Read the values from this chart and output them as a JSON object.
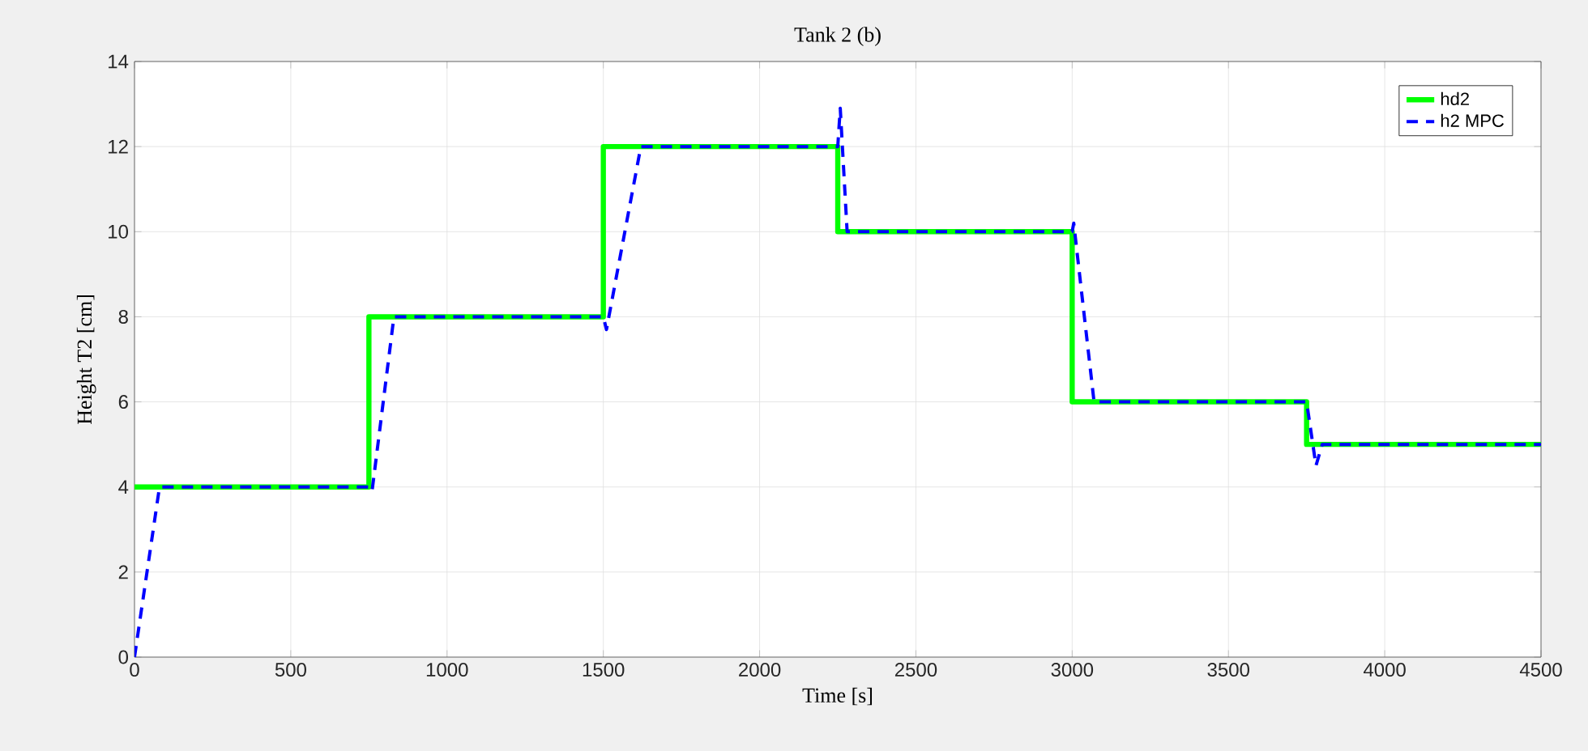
{
  "chart_data": {
    "type": "line",
    "title": "Tank 2 (b)",
    "xlabel": "Time [s]",
    "ylabel": "Height T2 [cm]",
    "xlim": [
      0,
      4500
    ],
    "ylim": [
      0,
      14
    ],
    "xticks": [
      0,
      500,
      1000,
      1500,
      2000,
      2500,
      3000,
      3500,
      4000,
      4500
    ],
    "yticks": [
      0,
      2,
      4,
      6,
      8,
      10,
      12,
      14
    ],
    "grid": true,
    "legend": "top right",
    "series": [
      {
        "name": "hd2",
        "color": "#00ff00",
        "line_style": "solid",
        "x": [
          0,
          750,
          750,
          1500,
          1500,
          2250,
          2250,
          3000,
          3000,
          3750,
          3750,
          4500
        ],
        "values": [
          4,
          4,
          8,
          8,
          12,
          12,
          10,
          10,
          6,
          6,
          5,
          5
        ]
      },
      {
        "name": "h2 MPC",
        "color": "#0000ff",
        "line_style": "dashed",
        "x": [
          0,
          80,
          750,
          760,
          830,
          1500,
          1510,
          1620,
          2250,
          2258,
          2280,
          3000,
          3005,
          3070,
          3750,
          3780,
          3800,
          4500
        ],
        "values": [
          0,
          4,
          4,
          3.9,
          8,
          8,
          7.7,
          12,
          12,
          12.9,
          10,
          10,
          10.2,
          6,
          6,
          4.5,
          5,
          5
        ]
      }
    ]
  }
}
